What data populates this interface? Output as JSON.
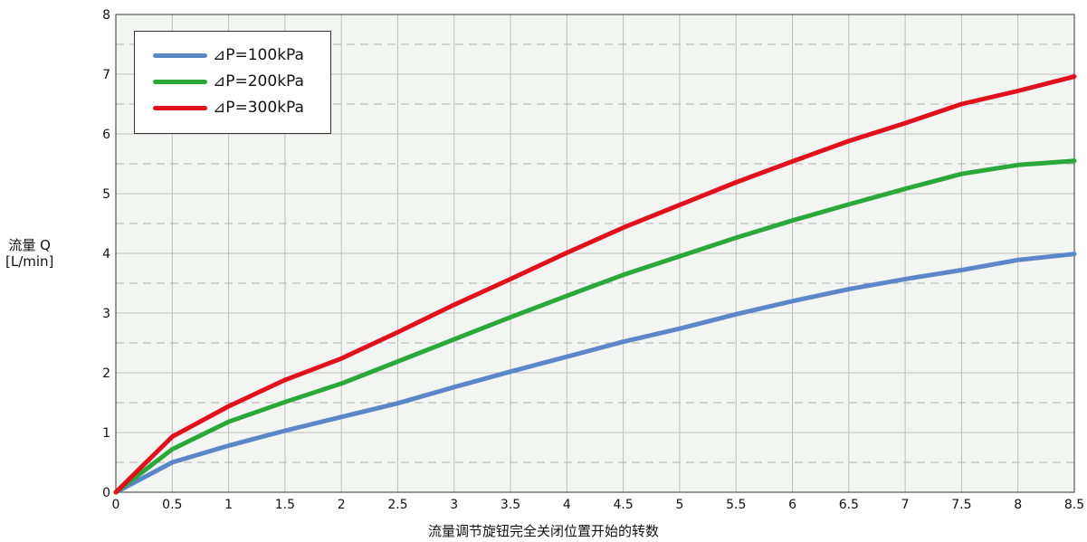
{
  "chart_data": {
    "type": "line",
    "title": "",
    "xlabel": "流量调节旋钮完全关闭位置开始的转数",
    "ylabel_line1": "流量 Q",
    "ylabel_line2": "[L/min]",
    "xlim": [
      0,
      8.5
    ],
    "ylim": [
      0,
      8
    ],
    "x_ticks": [
      0,
      0.5,
      1,
      1.5,
      2,
      2.5,
      3,
      3.5,
      4,
      4.5,
      5,
      5.5,
      6,
      6.5,
      7,
      7.5,
      8,
      8.5
    ],
    "y_ticks": [
      0,
      1,
      2,
      3,
      4,
      5,
      6,
      7,
      8
    ],
    "grid": "on",
    "legend_position": "top-left",
    "x": [
      0,
      0.5,
      1,
      1.5,
      2,
      2.5,
      3,
      3.5,
      4,
      4.5,
      5,
      5.5,
      6,
      6.5,
      7,
      7.5,
      8,
      8.5
    ],
    "series": [
      {
        "name": "⊿P=100kPa",
        "color": "#5b87c8",
        "values": [
          0,
          0.5,
          0.78,
          1.03,
          1.26,
          1.49,
          1.76,
          2.02,
          2.27,
          2.52,
          2.74,
          2.98,
          3.2,
          3.4,
          3.57,
          3.72,
          3.89,
          3.99
        ]
      },
      {
        "name": "⊿P=200kPa",
        "color": "#2aa83a",
        "values": [
          0,
          0.72,
          1.18,
          1.51,
          1.82,
          2.19,
          2.56,
          2.93,
          3.29,
          3.64,
          3.95,
          4.26,
          4.55,
          4.82,
          5.08,
          5.33,
          5.48,
          5.55
        ]
      },
      {
        "name": "⊿P=300kPa",
        "color": "#e0101c",
        "values": [
          0,
          0.93,
          1.44,
          1.88,
          2.24,
          2.68,
          3.14,
          3.57,
          4.01,
          4.43,
          4.81,
          5.19,
          5.54,
          5.88,
          6.18,
          6.5,
          6.72,
          6.96
        ]
      }
    ]
  }
}
